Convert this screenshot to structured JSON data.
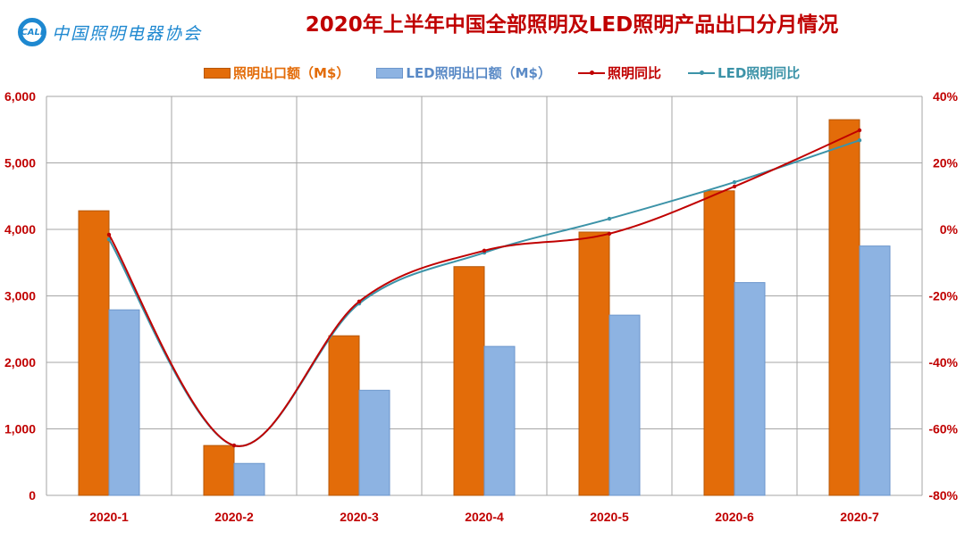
{
  "logo": {
    "mark": "CALI",
    "text": "中国照明电器协会"
  },
  "colors": {
    "orange": "#E36C09",
    "blue": "#8DB3E2",
    "red": "#C00000",
    "teal": "#3C93A8",
    "grid": "#A6A6A6",
    "axis_text": "#C00000"
  },
  "chart_data": {
    "type": "bar",
    "title": "2020年上半年中国全部照明及LED照明产品出口分月情况",
    "categories": [
      "2020-1",
      "2020-2",
      "2020-3",
      "2020-4",
      "2020-5",
      "2020-6",
      "2020-7"
    ],
    "series": [
      {
        "name": "照明出口额（M$）",
        "type": "bar",
        "axis": "left",
        "values": [
          4280,
          750,
          2400,
          3440,
          3960,
          4580,
          5650
        ]
      },
      {
        "name": "LED照明出口额（M$）",
        "type": "bar",
        "axis": "left",
        "values": [
          2790,
          480,
          1580,
          2240,
          2710,
          3200,
          3750
        ]
      },
      {
        "name": "照明同比",
        "type": "line",
        "axis": "right",
        "values": [
          -1.6,
          -65,
          -21.7,
          -6.4,
          -1.3,
          12.9,
          29.8
        ]
      },
      {
        "name": "LED照明同比",
        "type": "line",
        "axis": "right",
        "values": [
          -3,
          -65,
          -22.3,
          -7,
          3.2,
          14.2,
          26.8
        ]
      }
    ],
    "left_axis": {
      "range": [
        0,
        6000
      ],
      "ticks": [
        "0",
        "1,000",
        "2,000",
        "3,000",
        "4,000",
        "5,000",
        "6,000"
      ]
    },
    "right_axis": {
      "range": [
        -80,
        40
      ],
      "ticks": [
        "-80%",
        "-60%",
        "-40%",
        "-20%",
        "0%",
        "20%",
        "40%"
      ]
    },
    "grid": true,
    "legend_position": "top"
  }
}
